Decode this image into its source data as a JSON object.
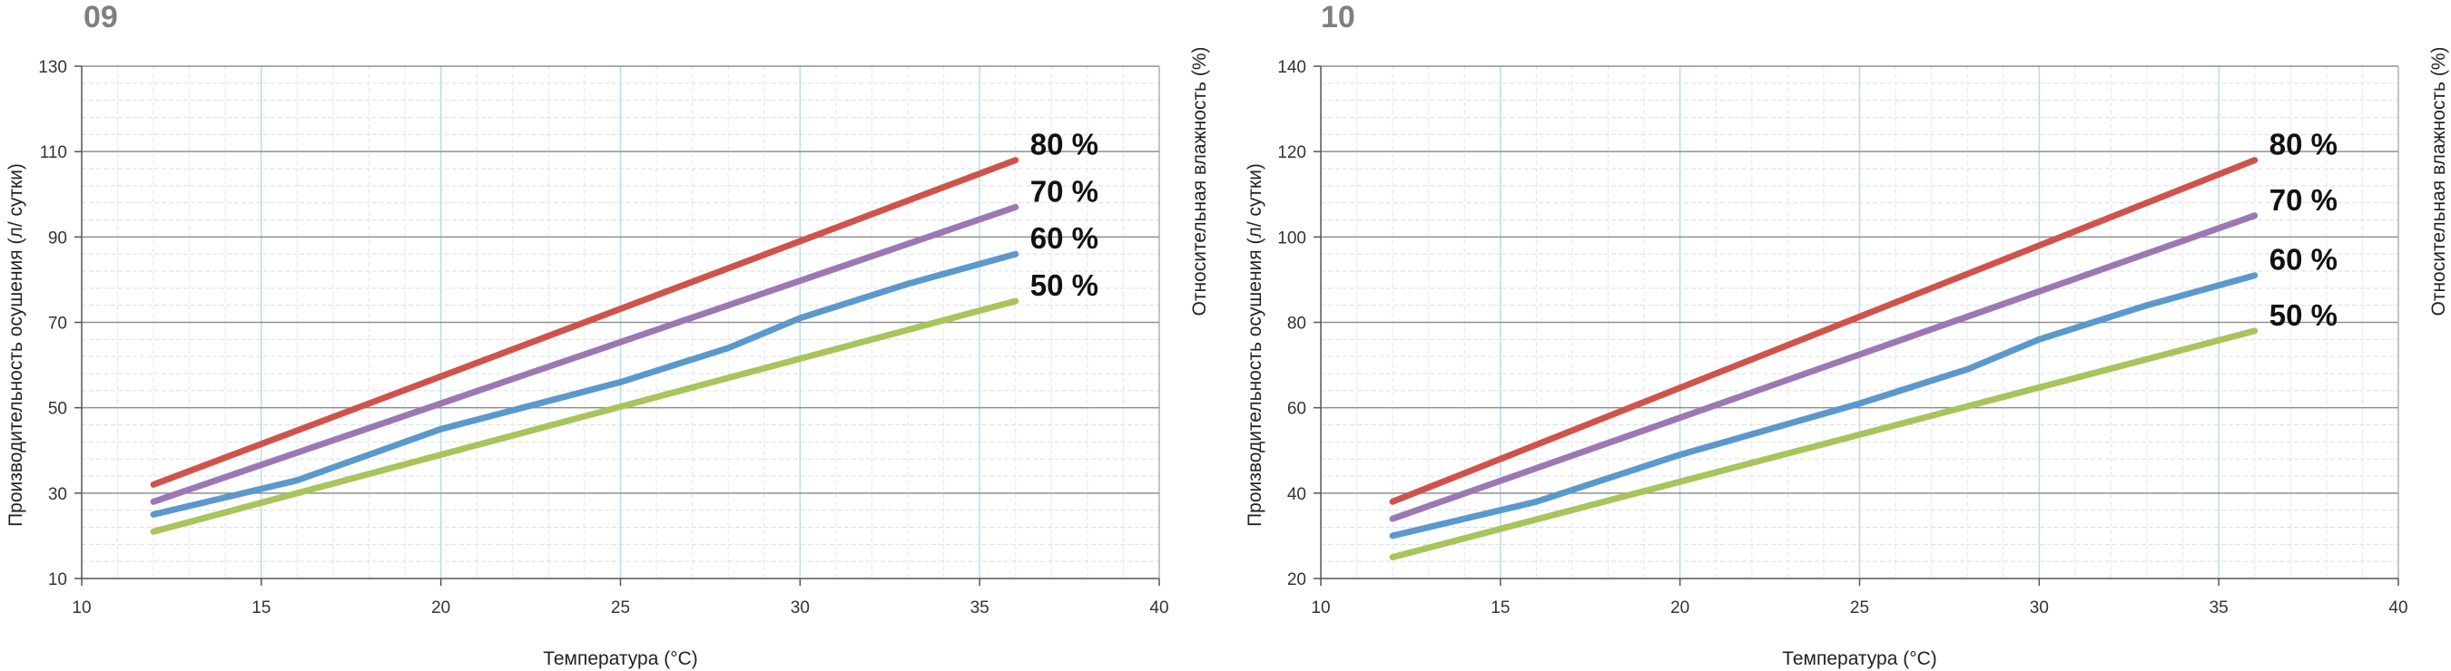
{
  "chart_data": [
    {
      "type": "line",
      "panel_number": "09",
      "xlabel": "Температура (°C)",
      "ylabel": "Производительность осушения (л/ сутки)",
      "y2label": "Относительная влажность (%)",
      "xlim": [
        10,
        40
      ],
      "ylim": [
        10,
        130
      ],
      "xticks": [
        10,
        15,
        20,
        25,
        30,
        35,
        40
      ],
      "yticks": [
        10,
        30,
        50,
        70,
        90,
        110,
        130
      ],
      "grid": true,
      "series": [
        {
          "name": "80 %",
          "color": "#d0534b",
          "x": [
            12,
            36
          ],
          "y": [
            32,
            108
          ]
        },
        {
          "name": "70 %",
          "color": "#9b78b4",
          "x": [
            12,
            36
          ],
          "y": [
            28,
            97
          ]
        },
        {
          "name": "60 %",
          "color": "#5b98cc",
          "x": [
            12,
            16,
            20,
            25,
            28,
            30,
            33,
            36
          ],
          "y": [
            25,
            33,
            45,
            56,
            64,
            71,
            79,
            86
          ]
        },
        {
          "name": "50 %",
          "color": "#a8c45a",
          "x": [
            12,
            36
          ],
          "y": [
            21,
            75
          ]
        }
      ]
    },
    {
      "type": "line",
      "panel_number": "10",
      "xlabel": "Температура (°C)",
      "ylabel": "Производительность осушения (л/ сутки)",
      "y2label": "Относительная влажность (%)",
      "xlim": [
        10,
        40
      ],
      "ylim": [
        20,
        140
      ],
      "xticks": [
        10,
        15,
        20,
        25,
        30,
        35,
        40
      ],
      "yticks": [
        20,
        40,
        60,
        80,
        100,
        120,
        140
      ],
      "grid": true,
      "series": [
        {
          "name": "80 %",
          "color": "#d0534b",
          "x": [
            12,
            36
          ],
          "y": [
            38,
            118
          ]
        },
        {
          "name": "70 %",
          "color": "#9b78b4",
          "x": [
            12,
            36
          ],
          "y": [
            34,
            105
          ]
        },
        {
          "name": "60 %",
          "color": "#5b98cc",
          "x": [
            12,
            16,
            20,
            25,
            28,
            30,
            33,
            36
          ],
          "y": [
            30,
            38,
            49,
            61,
            69,
            76,
            84,
            91
          ]
        },
        {
          "name": "50 %",
          "color": "#a8c45a",
          "x": [
            12,
            36
          ],
          "y": [
            25,
            78
          ]
        }
      ]
    }
  ]
}
